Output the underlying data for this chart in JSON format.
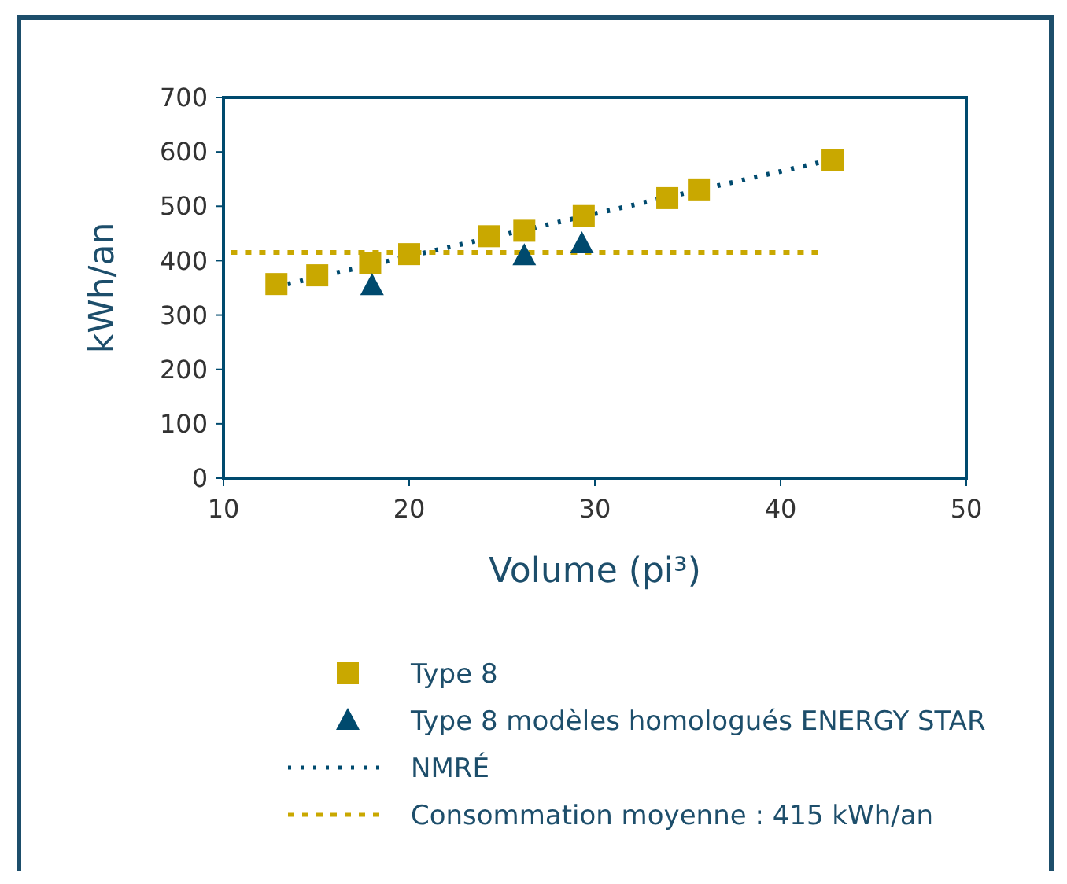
{
  "chart_data": {
    "type": "scatter",
    "xlabel": "Volume (pi³)",
    "ylabel": "kWh/an",
    "xlim": [
      10,
      50
    ],
    "xticks": [
      10,
      20,
      30,
      40,
      50
    ],
    "ylim": [
      0,
      700
    ],
    "yticks": [
      0,
      100,
      200,
      300,
      400,
      500,
      600,
      700
    ],
    "grid": false,
    "legend": "bottom",
    "series": [
      {
        "name": "Type 8",
        "marker": "square",
        "color": "#c9a800",
        "x": [
          12.85,
          15.05,
          17.9,
          20.0,
          24.3,
          26.2,
          29.4,
          33.9,
          35.6,
          42.8
        ],
        "values": [
          357,
          373,
          395,
          412,
          445,
          455,
          482,
          515,
          531,
          585
        ]
      },
      {
        "name": "Type 8 modèles homologués ENERGY STAR",
        "marker": "triangle",
        "color": "#004a6e",
        "x": [
          18.0,
          26.2,
          29.3
        ],
        "values": [
          354,
          409,
          431
        ]
      },
      {
        "name": "NMRÉ",
        "type": "line",
        "marker": "none",
        "line_style": "dotted",
        "color": "#004a6e",
        "x": [
          12.8,
          42.8
        ],
        "values": [
          352,
          586
        ]
      },
      {
        "name": "Consommation moyenne : 415 kWh/an",
        "type": "line",
        "marker": "none",
        "line_style": "dashed",
        "color": "#c9a800",
        "x": [
          10.4,
          42.3
        ],
        "values": [
          415,
          415
        ]
      }
    ]
  }
}
